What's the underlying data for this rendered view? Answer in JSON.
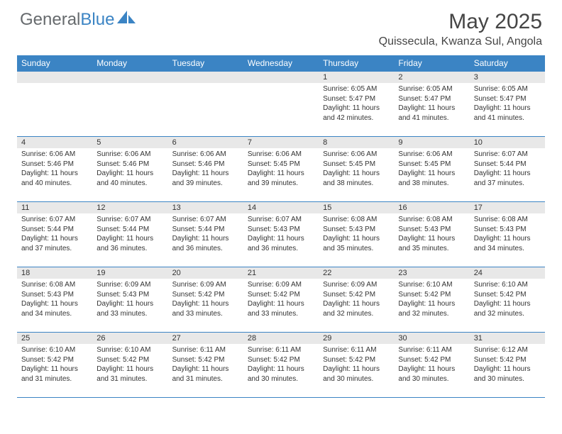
{
  "logo": {
    "text1": "General",
    "text2": "Blue"
  },
  "title": "May 2025",
  "location": "Quissecula, Kwanza Sul, Angola",
  "colors": {
    "header_bg": "#3b84c4",
    "daynum_bg": "#e8e8e8",
    "text": "#333333"
  },
  "weekdays": [
    "Sunday",
    "Monday",
    "Tuesday",
    "Wednesday",
    "Thursday",
    "Friday",
    "Saturday"
  ],
  "weeks": [
    [
      null,
      null,
      null,
      null,
      {
        "n": "1",
        "sr": "Sunrise: 6:05 AM",
        "ss": "Sunset: 5:47 PM",
        "dl1": "Daylight: 11 hours",
        "dl2": "and 42 minutes."
      },
      {
        "n": "2",
        "sr": "Sunrise: 6:05 AM",
        "ss": "Sunset: 5:47 PM",
        "dl1": "Daylight: 11 hours",
        "dl2": "and 41 minutes."
      },
      {
        "n": "3",
        "sr": "Sunrise: 6:05 AM",
        "ss": "Sunset: 5:47 PM",
        "dl1": "Daylight: 11 hours",
        "dl2": "and 41 minutes."
      }
    ],
    [
      {
        "n": "4",
        "sr": "Sunrise: 6:06 AM",
        "ss": "Sunset: 5:46 PM",
        "dl1": "Daylight: 11 hours",
        "dl2": "and 40 minutes."
      },
      {
        "n": "5",
        "sr": "Sunrise: 6:06 AM",
        "ss": "Sunset: 5:46 PM",
        "dl1": "Daylight: 11 hours",
        "dl2": "and 40 minutes."
      },
      {
        "n": "6",
        "sr": "Sunrise: 6:06 AM",
        "ss": "Sunset: 5:46 PM",
        "dl1": "Daylight: 11 hours",
        "dl2": "and 39 minutes."
      },
      {
        "n": "7",
        "sr": "Sunrise: 6:06 AM",
        "ss": "Sunset: 5:45 PM",
        "dl1": "Daylight: 11 hours",
        "dl2": "and 39 minutes."
      },
      {
        "n": "8",
        "sr": "Sunrise: 6:06 AM",
        "ss": "Sunset: 5:45 PM",
        "dl1": "Daylight: 11 hours",
        "dl2": "and 38 minutes."
      },
      {
        "n": "9",
        "sr": "Sunrise: 6:06 AM",
        "ss": "Sunset: 5:45 PM",
        "dl1": "Daylight: 11 hours",
        "dl2": "and 38 minutes."
      },
      {
        "n": "10",
        "sr": "Sunrise: 6:07 AM",
        "ss": "Sunset: 5:44 PM",
        "dl1": "Daylight: 11 hours",
        "dl2": "and 37 minutes."
      }
    ],
    [
      {
        "n": "11",
        "sr": "Sunrise: 6:07 AM",
        "ss": "Sunset: 5:44 PM",
        "dl1": "Daylight: 11 hours",
        "dl2": "and 37 minutes."
      },
      {
        "n": "12",
        "sr": "Sunrise: 6:07 AM",
        "ss": "Sunset: 5:44 PM",
        "dl1": "Daylight: 11 hours",
        "dl2": "and 36 minutes."
      },
      {
        "n": "13",
        "sr": "Sunrise: 6:07 AM",
        "ss": "Sunset: 5:44 PM",
        "dl1": "Daylight: 11 hours",
        "dl2": "and 36 minutes."
      },
      {
        "n": "14",
        "sr": "Sunrise: 6:07 AM",
        "ss": "Sunset: 5:43 PM",
        "dl1": "Daylight: 11 hours",
        "dl2": "and 36 minutes."
      },
      {
        "n": "15",
        "sr": "Sunrise: 6:08 AM",
        "ss": "Sunset: 5:43 PM",
        "dl1": "Daylight: 11 hours",
        "dl2": "and 35 minutes."
      },
      {
        "n": "16",
        "sr": "Sunrise: 6:08 AM",
        "ss": "Sunset: 5:43 PM",
        "dl1": "Daylight: 11 hours",
        "dl2": "and 35 minutes."
      },
      {
        "n": "17",
        "sr": "Sunrise: 6:08 AM",
        "ss": "Sunset: 5:43 PM",
        "dl1": "Daylight: 11 hours",
        "dl2": "and 34 minutes."
      }
    ],
    [
      {
        "n": "18",
        "sr": "Sunrise: 6:08 AM",
        "ss": "Sunset: 5:43 PM",
        "dl1": "Daylight: 11 hours",
        "dl2": "and 34 minutes."
      },
      {
        "n": "19",
        "sr": "Sunrise: 6:09 AM",
        "ss": "Sunset: 5:43 PM",
        "dl1": "Daylight: 11 hours",
        "dl2": "and 33 minutes."
      },
      {
        "n": "20",
        "sr": "Sunrise: 6:09 AM",
        "ss": "Sunset: 5:42 PM",
        "dl1": "Daylight: 11 hours",
        "dl2": "and 33 minutes."
      },
      {
        "n": "21",
        "sr": "Sunrise: 6:09 AM",
        "ss": "Sunset: 5:42 PM",
        "dl1": "Daylight: 11 hours",
        "dl2": "and 33 minutes."
      },
      {
        "n": "22",
        "sr": "Sunrise: 6:09 AM",
        "ss": "Sunset: 5:42 PM",
        "dl1": "Daylight: 11 hours",
        "dl2": "and 32 minutes."
      },
      {
        "n": "23",
        "sr": "Sunrise: 6:10 AM",
        "ss": "Sunset: 5:42 PM",
        "dl1": "Daylight: 11 hours",
        "dl2": "and 32 minutes."
      },
      {
        "n": "24",
        "sr": "Sunrise: 6:10 AM",
        "ss": "Sunset: 5:42 PM",
        "dl1": "Daylight: 11 hours",
        "dl2": "and 32 minutes."
      }
    ],
    [
      {
        "n": "25",
        "sr": "Sunrise: 6:10 AM",
        "ss": "Sunset: 5:42 PM",
        "dl1": "Daylight: 11 hours",
        "dl2": "and 31 minutes."
      },
      {
        "n": "26",
        "sr": "Sunrise: 6:10 AM",
        "ss": "Sunset: 5:42 PM",
        "dl1": "Daylight: 11 hours",
        "dl2": "and 31 minutes."
      },
      {
        "n": "27",
        "sr": "Sunrise: 6:11 AM",
        "ss": "Sunset: 5:42 PM",
        "dl1": "Daylight: 11 hours",
        "dl2": "and 31 minutes."
      },
      {
        "n": "28",
        "sr": "Sunrise: 6:11 AM",
        "ss": "Sunset: 5:42 PM",
        "dl1": "Daylight: 11 hours",
        "dl2": "and 30 minutes."
      },
      {
        "n": "29",
        "sr": "Sunrise: 6:11 AM",
        "ss": "Sunset: 5:42 PM",
        "dl1": "Daylight: 11 hours",
        "dl2": "and 30 minutes."
      },
      {
        "n": "30",
        "sr": "Sunrise: 6:11 AM",
        "ss": "Sunset: 5:42 PM",
        "dl1": "Daylight: 11 hours",
        "dl2": "and 30 minutes."
      },
      {
        "n": "31",
        "sr": "Sunrise: 6:12 AM",
        "ss": "Sunset: 5:42 PM",
        "dl1": "Daylight: 11 hours",
        "dl2": "and 30 minutes."
      }
    ]
  ]
}
